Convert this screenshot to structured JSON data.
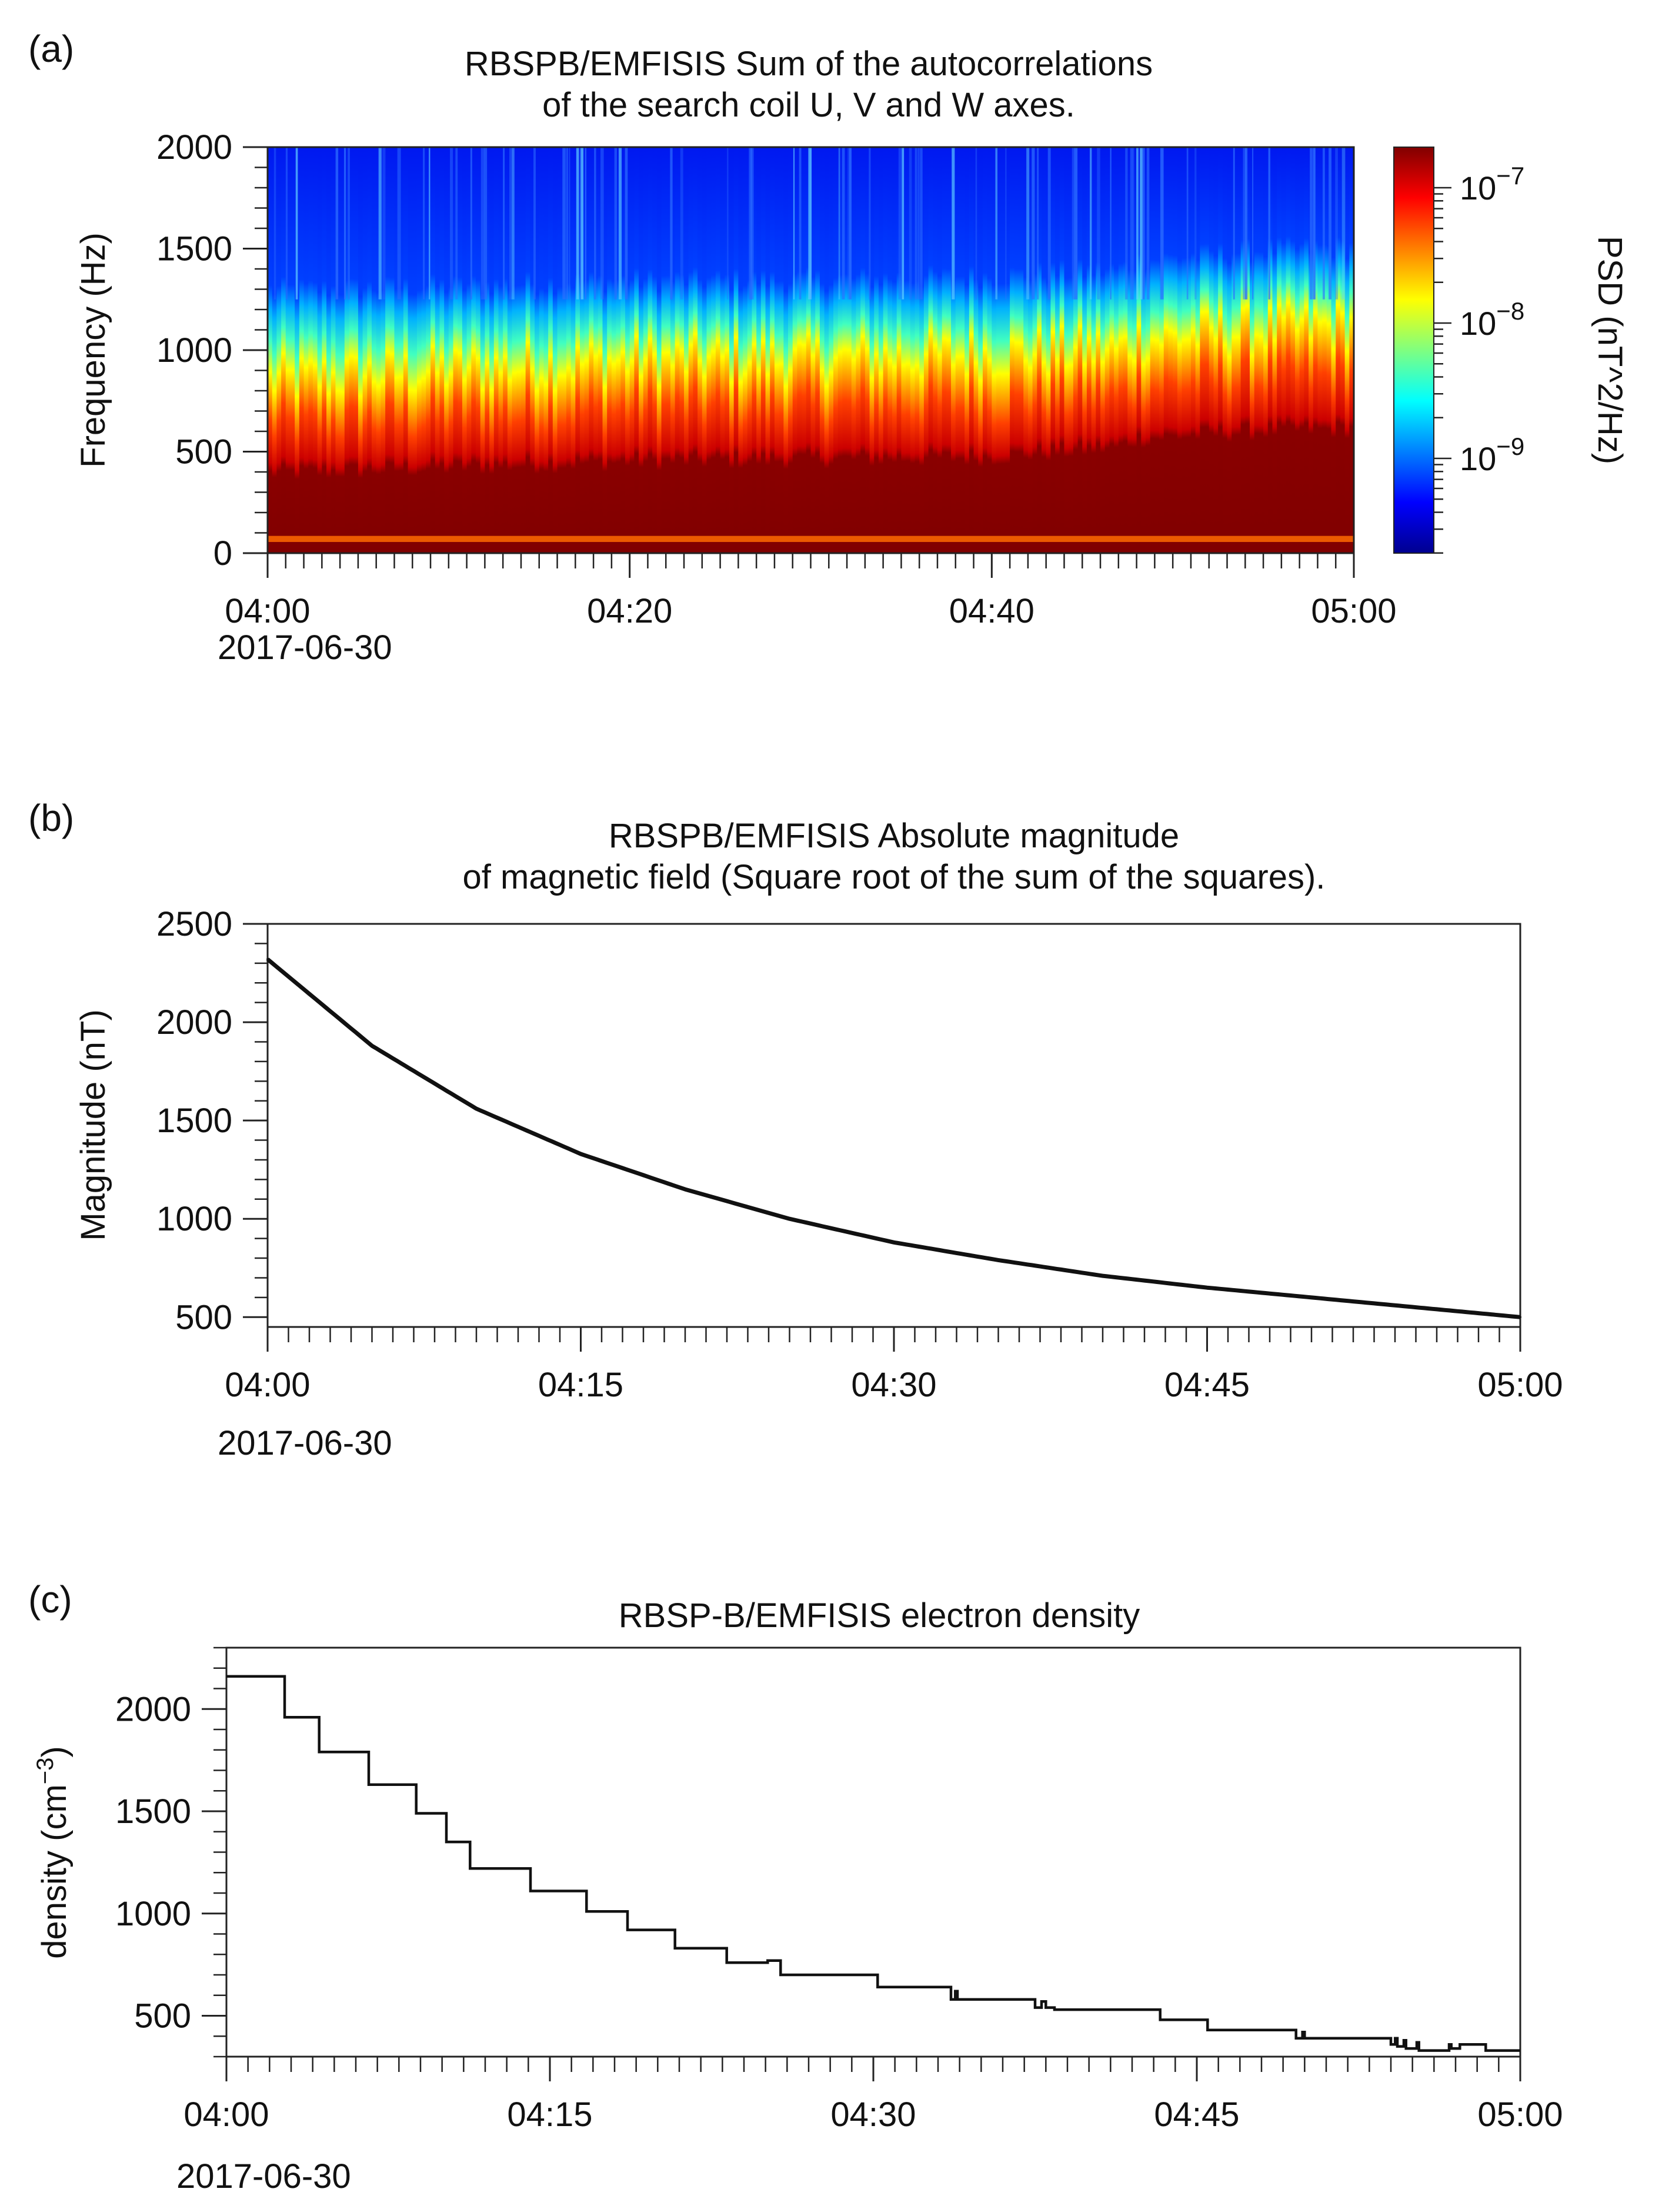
{
  "figure_labels": {
    "a": "(a)",
    "b": "(b)",
    "c": "(c)"
  },
  "panel_a": {
    "title_line1": "RBSPB/EMFISIS  Sum of the autocorrelations",
    "title_line2": "of the search coil U, V and W axes.",
    "ylabel": "Frequency (Hz)",
    "colorbar_label": "PSD (nT^2/Hz)",
    "colorbar_ticks": [
      {
        "base": "10",
        "exp": "−7",
        "log10": -7
      },
      {
        "base": "10",
        "exp": "−8",
        "log10": -8
      },
      {
        "base": "10",
        "exp": "−9",
        "log10": -9
      }
    ],
    "date_label": "2017-06-30"
  },
  "panel_b": {
    "title_line1": "RBSPB/EMFISIS  Absolute magnitude",
    "title_line2": "of magnetic field (Square root of the sum of the squares).",
    "ylabel": "Magnitude (nT)",
    "date_label": "2017-06-30"
  },
  "panel_c": {
    "title": "RBSP-B/EMFISIS  electron density",
    "ylabel_main": "density (cm",
    "ylabel_sup": "−3",
    "ylabel_end": ")",
    "date_label": "2017-06-30"
  },
  "chart_data": [
    {
      "id": "a",
      "type": "heatmap",
      "title": "RBSPB/EMFISIS  Sum of the autocorrelations of the search coil U, V and W axes.",
      "xlabel": "",
      "ylabel": "Frequency (Hz)",
      "xlim": [
        0,
        60
      ],
      "ylim": [
        0,
        2000
      ],
      "x_ticks": [
        {
          "v": 0,
          "label": "04:00"
        },
        {
          "v": 20,
          "label": "04:20"
        },
        {
          "v": 40,
          "label": "04:40"
        },
        {
          "v": 60,
          "label": "05:00"
        }
      ],
      "y_ticks": [
        {
          "v": 0,
          "label": "0"
        },
        {
          "v": 500,
          "label": "500"
        },
        {
          "v": 1000,
          "label": "1000"
        },
        {
          "v": 1500,
          "label": "1500"
        },
        {
          "v": 2000,
          "label": "2000"
        }
      ],
      "colorbar": {
        "label": "PSD (nT^2/Hz)",
        "scale": "log",
        "range_log10": [
          -9.7,
          -6.7
        ]
      },
      "band_edges": {
        "x_minutes": [
          0,
          10,
          20,
          30,
          40,
          47,
          48,
          55,
          60
        ],
        "saturated_top_hz": [
          390,
          420,
          450,
          460,
          470,
          520,
          560,
          600,
          610
        ],
        "yellow_top_hz": [
          850,
          900,
          950,
          950,
          980,
          1000,
          1050,
          1100,
          1120
        ],
        "cyan_top_hz": [
          1180,
          1200,
          1230,
          1230,
          1250,
          1280,
          1320,
          1380,
          1390
        ]
      }
    },
    {
      "id": "b",
      "type": "line",
      "title": "RBSPB/EMFISIS  Absolute magnitude of magnetic field (Square root of the sum of the squares).",
      "xlabel": "",
      "ylabel": "Magnitude (nT)",
      "xlim": [
        0,
        60
      ],
      "ylim": [
        450,
        2500
      ],
      "x_ticks": [
        {
          "v": 0,
          "label": "04:00"
        },
        {
          "v": 15,
          "label": "04:15"
        },
        {
          "v": 30,
          "label": "04:30"
        },
        {
          "v": 45,
          "label": "04:45"
        },
        {
          "v": 60,
          "label": "05:00"
        }
      ],
      "y_ticks": [
        {
          "v": 500,
          "label": "500"
        },
        {
          "v": 1000,
          "label": "1000"
        },
        {
          "v": 1500,
          "label": "1500"
        },
        {
          "v": 2000,
          "label": "2000"
        },
        {
          "v": 2500,
          "label": "2500"
        }
      ],
      "x": [
        0,
        5,
        10,
        15,
        20,
        25,
        30,
        35,
        40,
        45,
        50,
        55,
        60
      ],
      "y": [
        2320,
        1880,
        1560,
        1330,
        1150,
        1000,
        880,
        790,
        710,
        650,
        600,
        550,
        500
      ]
    },
    {
      "id": "c",
      "type": "line",
      "title": "RBSP-B/EMFISIS  electron density",
      "xlabel": "",
      "ylabel": "density (cm^-3)",
      "xlim": [
        0,
        60
      ],
      "ylim": [
        300,
        2300
      ],
      "x_ticks": [
        {
          "v": 0,
          "label": "04:00"
        },
        {
          "v": 15,
          "label": "04:15"
        },
        {
          "v": 30,
          "label": "04:30"
        },
        {
          "v": 45,
          "label": "04:45"
        },
        {
          "v": 60,
          "label": "05:00"
        }
      ],
      "y_ticks": [
        {
          "v": 500,
          "label": "500"
        },
        {
          "v": 1000,
          "label": "1000"
        },
        {
          "v": 1500,
          "label": "1500"
        },
        {
          "v": 2000,
          "label": "2000"
        }
      ],
      "steps": [
        [
          0,
          2160
        ],
        [
          2.7,
          1960
        ],
        [
          4.3,
          1790
        ],
        [
          6.6,
          1630
        ],
        [
          8.8,
          1490
        ],
        [
          10.2,
          1350
        ],
        [
          11.3,
          1220
        ],
        [
          14.1,
          1110
        ],
        [
          16.7,
          1010
        ],
        [
          18.6,
          920
        ],
        [
          20.8,
          830
        ],
        [
          23.2,
          760
        ],
        [
          25.1,
          770
        ],
        [
          25.7,
          700
        ],
        [
          30.2,
          640
        ],
        [
          33.6,
          580
        ],
        [
          33.8,
          620
        ],
        [
          33.9,
          580
        ],
        [
          37.5,
          540
        ],
        [
          37.8,
          570
        ],
        [
          38.0,
          540
        ],
        [
          38.4,
          530
        ],
        [
          43.3,
          480
        ],
        [
          45.5,
          430
        ],
        [
          49.6,
          390
        ],
        [
          49.9,
          420
        ],
        [
          50.0,
          390
        ],
        [
          54.0,
          360
        ],
        [
          54.2,
          390
        ],
        [
          54.3,
          350
        ],
        [
          54.6,
          380
        ],
        [
          54.7,
          340
        ],
        [
          55.2,
          370
        ],
        [
          55.3,
          330
        ],
        [
          56.7,
          360
        ],
        [
          56.8,
          340
        ],
        [
          57.2,
          360
        ],
        [
          58.4,
          330
        ],
        [
          60,
          330
        ]
      ]
    }
  ]
}
